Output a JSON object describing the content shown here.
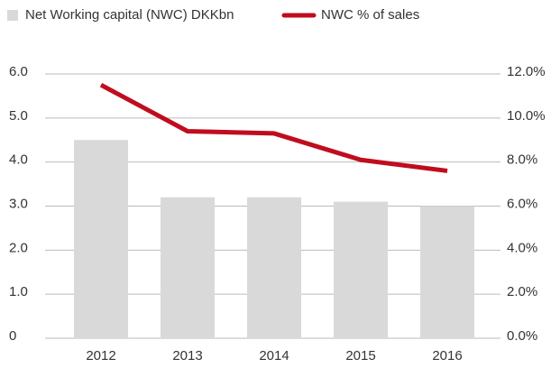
{
  "chart_data": {
    "type": "bar_line",
    "categories": [
      "2012",
      "2013",
      "2014",
      "2015",
      "2016"
    ],
    "series": [
      {
        "name": "Net Working capital (NWC) DKKbn",
        "type": "bar",
        "color": "#d9d9d9",
        "values": [
          4.5,
          3.2,
          3.2,
          3.1,
          3.0
        ]
      },
      {
        "name": "NWC % of sales",
        "type": "line",
        "color": "#c00d1e",
        "axis": "y2",
        "values": [
          11.5,
          9.4,
          9.3,
          8.1,
          7.6
        ]
      }
    ],
    "ylim": [
      0,
      6
    ],
    "yticks": [
      0,
      {
        "value": 1,
        "label": "1.0"
      },
      {
        "value": 2,
        "label": "2.0"
      },
      {
        "value": 3,
        "label": "3.0"
      },
      {
        "value": 4,
        "label": "4.0"
      },
      {
        "value": 5,
        "label": "5.0"
      },
      {
        "value": 6,
        "label": "6.0"
      }
    ],
    "y2lim": [
      0,
      12
    ],
    "y2ticks": [
      {
        "value": 0,
        "label": "0.0%"
      },
      {
        "value": 2,
        "label": "2.0%"
      },
      {
        "value": 4,
        "label": "4.0%"
      },
      {
        "value": 6,
        "label": "6.0%"
      },
      {
        "value": 8,
        "label": "8.0%"
      },
      {
        "value": 10,
        "label": "10.0%"
      },
      {
        "value": 12,
        "label": "12.0%"
      }
    ],
    "grid": true,
    "legend": "top-left"
  }
}
